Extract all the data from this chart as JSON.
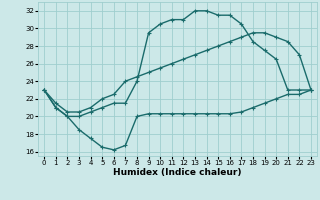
{
  "xlabel": "Humidex (Indice chaleur)",
  "background_color": "#cce8e8",
  "grid_color": "#9fcece",
  "line_color": "#1a6b6b",
  "xlim": [
    -0.5,
    23.5
  ],
  "ylim": [
    15.5,
    33.0
  ],
  "xticks": [
    0,
    1,
    2,
    3,
    4,
    5,
    6,
    7,
    8,
    9,
    10,
    11,
    12,
    13,
    14,
    15,
    16,
    17,
    18,
    19,
    20,
    21,
    22,
    23
  ],
  "yticks": [
    16,
    18,
    20,
    22,
    24,
    26,
    28,
    30,
    32
  ],
  "line1_x": [
    0,
    1,
    2,
    3,
    4,
    5,
    6,
    7,
    8,
    9,
    10,
    11,
    12,
    13,
    14,
    15,
    16,
    17,
    18,
    19,
    20,
    21,
    22,
    23
  ],
  "line1_y": [
    23.0,
    21.0,
    20.0,
    18.5,
    17.5,
    16.5,
    16.2,
    16.7,
    20.0,
    20.3,
    20.3,
    20.3,
    20.3,
    20.3,
    20.3,
    20.3,
    20.3,
    20.5,
    21.0,
    21.5,
    22.0,
    22.5,
    22.5,
    23.0
  ],
  "line2_x": [
    0,
    1,
    2,
    3,
    4,
    5,
    6,
    7,
    8,
    9,
    10,
    11,
    12,
    13,
    14,
    15,
    16,
    17,
    18,
    19,
    20,
    21,
    22,
    23
  ],
  "line2_y": [
    23.0,
    21.0,
    20.0,
    20.0,
    20.5,
    21.0,
    21.5,
    21.5,
    24.0,
    29.5,
    30.5,
    31.0,
    31.0,
    32.0,
    32.0,
    31.5,
    31.5,
    30.5,
    28.5,
    27.5,
    26.5,
    23.0,
    23.0,
    23.0
  ],
  "line3_x": [
    0,
    1,
    2,
    3,
    4,
    5,
    6,
    7,
    8,
    9,
    10,
    11,
    12,
    13,
    14,
    15,
    16,
    17,
    18,
    19,
    20,
    21,
    22,
    23
  ],
  "line3_y": [
    23.0,
    21.5,
    20.5,
    20.5,
    21.0,
    22.0,
    22.5,
    24.0,
    24.5,
    25.0,
    25.5,
    26.0,
    26.5,
    27.0,
    27.5,
    28.0,
    28.5,
    29.0,
    29.5,
    29.5,
    29.0,
    28.5,
    27.0,
    23.0
  ],
  "markersize": 3,
  "linewidth": 1.0,
  "tick_fontsize": 5,
  "xlabel_fontsize": 6.5
}
